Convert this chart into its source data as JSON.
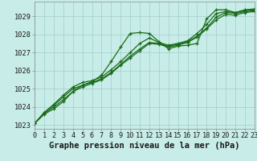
{
  "xlabel": "Graphe pression niveau de la mer (hPa)",
  "xlim": [
    0,
    23
  ],
  "ylim": [
    1022.8,
    1029.8
  ],
  "yticks": [
    1023,
    1024,
    1025,
    1026,
    1027,
    1028,
    1029
  ],
  "xticks": [
    0,
    1,
    2,
    3,
    4,
    5,
    6,
    7,
    8,
    9,
    10,
    11,
    12,
    13,
    14,
    15,
    16,
    17,
    18,
    19,
    20,
    21,
    22,
    23
  ],
  "bg_color": "#c8ede8",
  "grid_color": "#a0ccca",
  "line_color": "#1a6b1a",
  "lines": [
    [
      1023.1,
      1023.6,
      1023.9,
      1024.3,
      1024.85,
      1025.2,
      1025.4,
      1025.75,
      1026.5,
      1027.3,
      1028.05,
      1028.1,
      1028.05,
      1027.6,
      1027.2,
      1027.35,
      1027.4,
      1027.5,
      1028.85,
      1029.35,
      1029.35,
      1029.2,
      1029.35,
      1029.4
    ],
    [
      1023.1,
      1023.7,
      1024.15,
      1024.65,
      1025.1,
      1025.35,
      1025.45,
      1025.65,
      1026.05,
      1026.5,
      1027.0,
      1027.5,
      1027.8,
      1027.55,
      1027.4,
      1027.5,
      1027.65,
      1028.05,
      1028.55,
      1029.15,
      1029.25,
      1029.2,
      1029.3,
      1029.35
    ],
    [
      1023.1,
      1023.7,
      1024.1,
      1024.55,
      1025.0,
      1025.2,
      1025.35,
      1025.55,
      1025.9,
      1026.35,
      1026.8,
      1027.2,
      1027.55,
      1027.5,
      1027.35,
      1027.45,
      1027.6,
      1027.9,
      1028.35,
      1028.95,
      1029.2,
      1029.15,
      1029.25,
      1029.3
    ],
    [
      1023.1,
      1023.65,
      1024.0,
      1024.4,
      1024.85,
      1025.1,
      1025.3,
      1025.5,
      1025.85,
      1026.3,
      1026.7,
      1027.1,
      1027.5,
      1027.45,
      1027.3,
      1027.4,
      1027.55,
      1027.85,
      1028.3,
      1028.8,
      1029.1,
      1029.05,
      1029.2,
      1029.25
    ]
  ],
  "font_family": "monospace",
  "label_fontsize": 7.5,
  "tick_fontsize": 6.2
}
